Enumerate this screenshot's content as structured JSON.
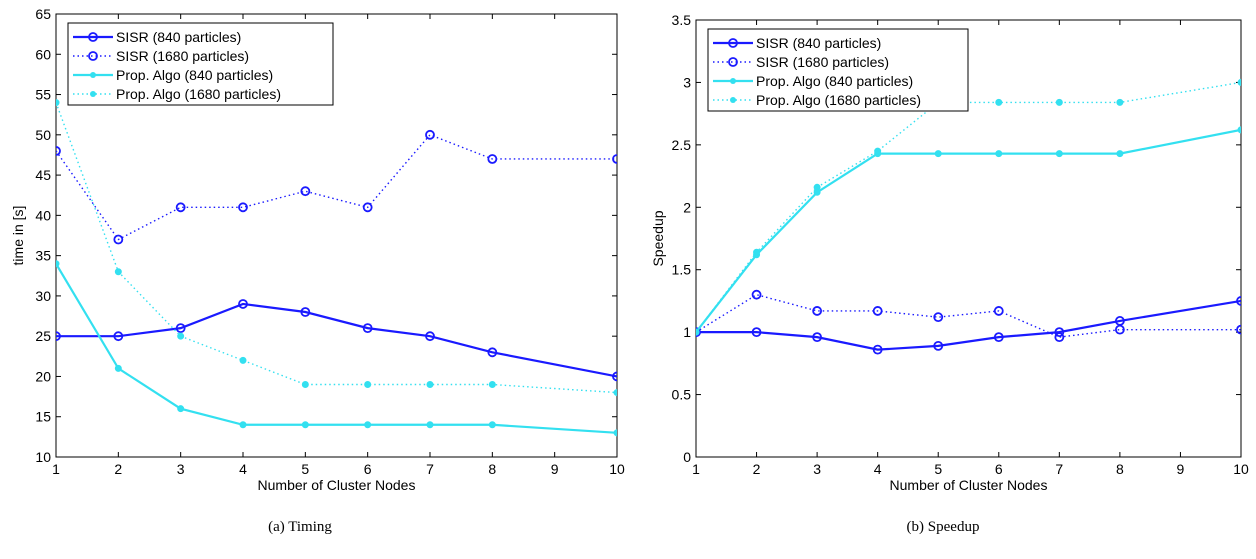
{
  "captions": [
    "(a) Timing",
    "(b) Speedup"
  ],
  "chart_data": [
    {
      "type": "line",
      "title": "",
      "xlabel": "Number of Cluster Nodes",
      "ylabel": "time in [s]",
      "xlim": [
        1,
        10
      ],
      "ylim": [
        10,
        65
      ],
      "xticks": [
        1,
        2,
        3,
        4,
        5,
        6,
        7,
        8,
        9,
        10
      ],
      "yticks": [
        10,
        15,
        20,
        25,
        30,
        35,
        40,
        45,
        50,
        55,
        60,
        65
      ],
      "grid": false,
      "legend_position": "top-left",
      "x": [
        1,
        2,
        3,
        4,
        5,
        6,
        7,
        8,
        10
      ],
      "series": [
        {
          "name": "SISR (840 particles)",
          "color": "#1a1aff",
          "linestyle": "solid",
          "marker": "open-circle",
          "values": [
            25,
            25,
            26,
            29,
            28,
            26,
            25,
            23,
            20
          ]
        },
        {
          "name": "SISR (1680 particles)",
          "color": "#1a1aff",
          "linestyle": "dotted",
          "marker": "open-circle",
          "values": [
            48,
            37,
            41,
            41,
            43,
            41,
            50,
            47,
            47
          ]
        },
        {
          "name": "Prop. Algo (840 particles)",
          "color": "#33e0f0",
          "linestyle": "solid",
          "marker": "filled-dot",
          "values": [
            34,
            21,
            16,
            14,
            14,
            14,
            14,
            14,
            13
          ]
        },
        {
          "name": "Prop. Algo (1680 particles)",
          "color": "#33e0f0",
          "linestyle": "dotted",
          "marker": "filled-dot",
          "values": [
            54,
            33,
            25,
            22,
            19,
            19,
            19,
            19,
            18
          ]
        }
      ]
    },
    {
      "type": "line",
      "title": "",
      "xlabel": "Number of Cluster Nodes",
      "ylabel": "Speedup",
      "xlim": [
        1,
        10
      ],
      "ylim": [
        0,
        3.5
      ],
      "xticks": [
        1,
        2,
        3,
        4,
        5,
        6,
        7,
        8,
        9,
        10
      ],
      "yticks": [
        0,
        0.5,
        1,
        1.5,
        2,
        2.5,
        3,
        3.5
      ],
      "grid": false,
      "legend_position": "top-left",
      "x": [
        1,
        2,
        3,
        4,
        5,
        6,
        7,
        8,
        10
      ],
      "series": [
        {
          "name": "SISR (840 particles)",
          "color": "#1a1aff",
          "linestyle": "solid",
          "marker": "open-circle",
          "values": [
            1,
            1,
            0.96,
            0.86,
            0.89,
            0.96,
            1,
            1.09,
            1.25
          ]
        },
        {
          "name": "SISR (1680 particles)",
          "color": "#1a1aff",
          "linestyle": "dotted",
          "marker": "open-circle",
          "values": [
            1,
            1.3,
            1.17,
            1.17,
            1.12,
            1.17,
            0.96,
            1.02,
            1.02
          ]
        },
        {
          "name": "Prop. Algo (840 particles)",
          "color": "#33e0f0",
          "linestyle": "solid",
          "marker": "filled-dot",
          "values": [
            1,
            1.62,
            2.12,
            2.43,
            2.43,
            2.43,
            2.43,
            2.43,
            2.62
          ]
        },
        {
          "name": "Prop. Algo (1680 particles)",
          "color": "#33e0f0",
          "linestyle": "dotted",
          "marker": "filled-dot",
          "values": [
            1,
            1.64,
            2.16,
            2.45,
            2.84,
            2.84,
            2.84,
            2.84,
            3
          ]
        }
      ]
    }
  ]
}
